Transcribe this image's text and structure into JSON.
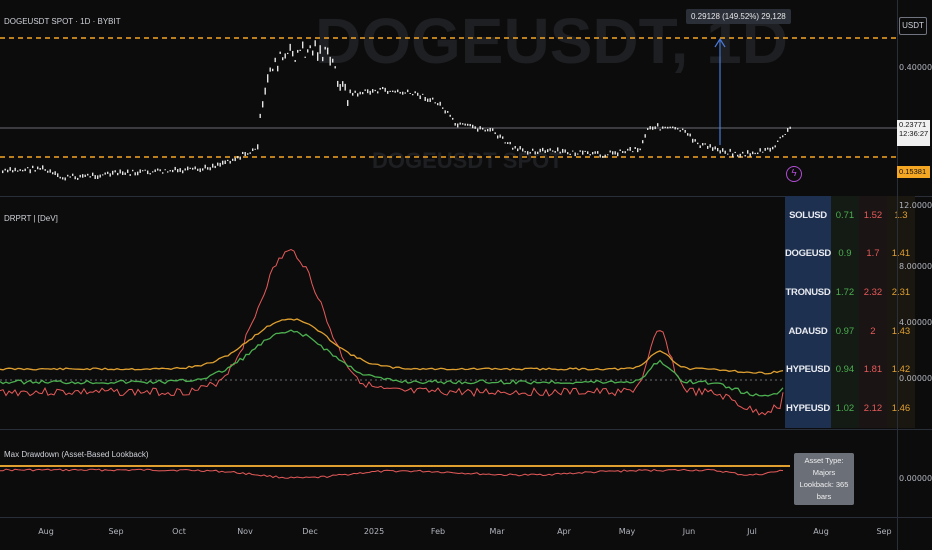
{
  "header": {
    "symbol_line": "DOGEUSDT SPOT · 1D · BYBIT"
  },
  "watermark": {
    "big": "DOGEUSDT, 1D",
    "small": "DOGEUSDT SPOT"
  },
  "currency_button": "USDT",
  "measure_label": "0.29128 (149.52%) 29,128",
  "price_axis": {
    "levels": [
      "0.40000"
    ],
    "last_price": "0.23771",
    "countdown": "12:36:27",
    "low_level": "0.15381"
  },
  "panes": {
    "indicator_name": "DRPRT | [DeV]",
    "indicator_axis": [
      "12.00000",
      "8.00000",
      "4.00000",
      "0.00000"
    ],
    "drawdown_name": "Max Drawdown (Asset-Based Lookback)",
    "drawdown_axis": [
      "0.00000"
    ]
  },
  "comparison_table": [
    {
      "symbol": "SOLUSD",
      "a": "0.71",
      "b": "1.52",
      "c": "1.3"
    },
    {
      "symbol": "DOGEUSD",
      "a": "0.9",
      "b": "1.7",
      "c": "1.41"
    },
    {
      "symbol": "TRONUSD",
      "a": "1.72",
      "b": "2.32",
      "c": "2.31"
    },
    {
      "symbol": "ADAUSD",
      "a": "0.97",
      "b": "2",
      "c": "1.43"
    },
    {
      "symbol": "HYPEUSD",
      "a": "0.94",
      "b": "1.81",
      "c": "1.42"
    },
    {
      "symbol": "HYPEUSD",
      "a": "1.02",
      "b": "2.12",
      "c": "1.46"
    }
  ],
  "tooltip": {
    "line1": "Asset Type: Majors",
    "line2": "Lookback: 365 bars"
  },
  "time_axis": [
    "Aug",
    "Sep",
    "Oct",
    "Nov",
    "Dec",
    "2025",
    "Feb",
    "Mar",
    "Apr",
    "May",
    "Jun",
    "Jul",
    "Aug",
    "Sep"
  ],
  "colors": {
    "level_line": "#f5a623",
    "price": "#e6e6e6",
    "green": "#4caf50",
    "red": "#e85a5a",
    "orange": "#e0a030",
    "table_header": "#1d3050"
  }
}
